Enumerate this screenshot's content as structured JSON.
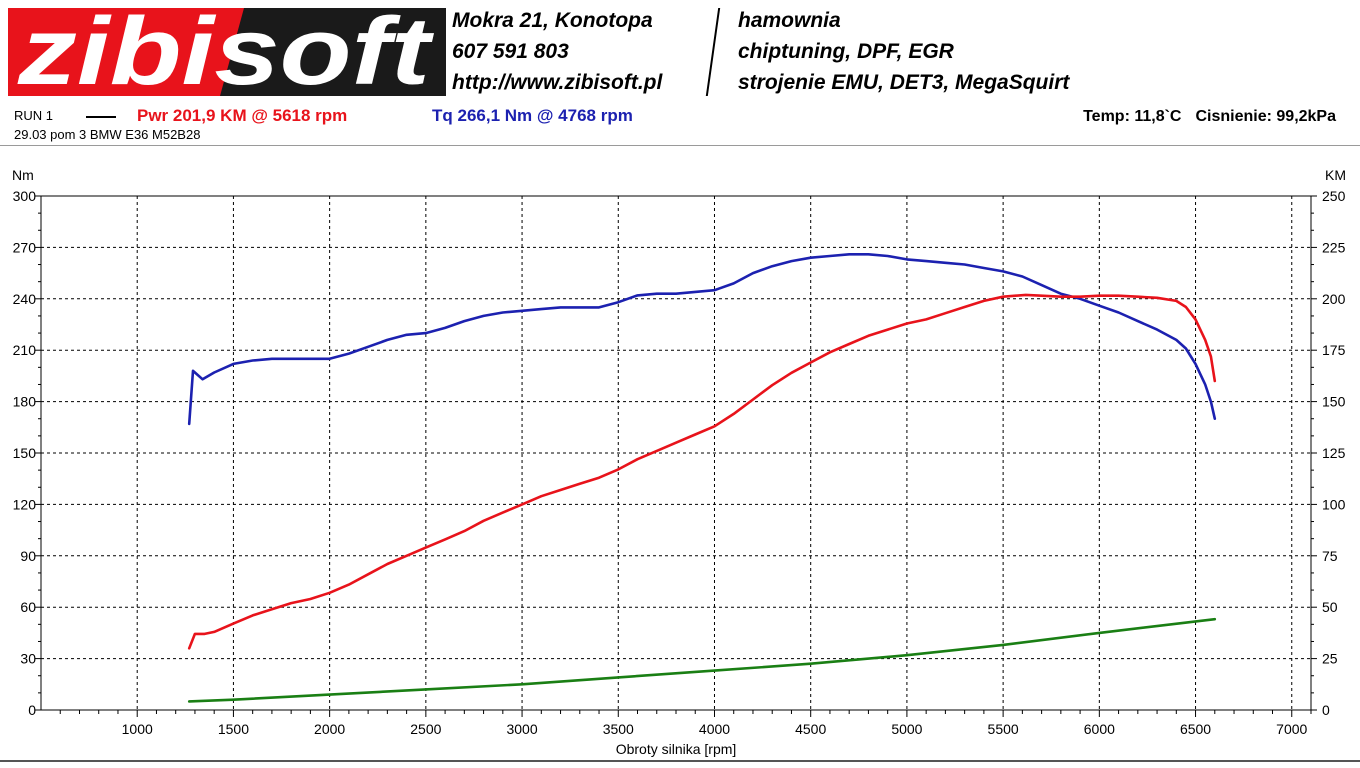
{
  "header": {
    "logo_text": "zibisoft",
    "contact_left": [
      "Mokra 21, Konotopa",
      "607 591 803",
      "http://www.zibisoft.pl"
    ],
    "contact_right": [
      "hamownia",
      "chiptuning, DPF, EGR",
      "strojenie EMU, DET3, MegaSquirt"
    ]
  },
  "run": {
    "label": "RUN 1",
    "power": "Pwr  201,9 KM @ 5618 rpm",
    "torque": "Tq 266,1 Nm @ 4768 rpm",
    "temp": "Temp: 11,8`C",
    "pressure": "Cisnienie: 99,2kPa",
    "description": "29.03 pom 3 BMW E36 M52B28"
  },
  "colors": {
    "power": "#e8131b",
    "torque": "#1c21b0",
    "loss": "#1a7f14",
    "logo_red": "#e8131b"
  },
  "chart_data": {
    "type": "line",
    "xlabel": "Obroty silnika [rpm]",
    "ylabel_left": "Nm",
    "ylabel_right": "KM",
    "xlim": [
      500,
      7100
    ],
    "ylim_left": [
      0,
      300
    ],
    "ylim_right": [
      0,
      250
    ],
    "x_ticks": [
      1000,
      1500,
      2000,
      2500,
      3000,
      3500,
      4000,
      4500,
      5000,
      5500,
      6000,
      6500,
      7000
    ],
    "y_ticks_left": [
      0,
      30,
      60,
      90,
      120,
      150,
      180,
      210,
      240,
      270,
      300
    ],
    "y_ticks_right": [
      0,
      25,
      50,
      75,
      100,
      125,
      150,
      175,
      200,
      225,
      250
    ],
    "grid": true,
    "series": [
      {
        "axis": "left",
        "color": "#1c21b0",
        "x": [
          1270,
          1290,
          1300,
          1340,
          1400,
          1500,
          1600,
          1700,
          1800,
          1900,
          2000,
          2100,
          2200,
          2300,
          2400,
          2500,
          2600,
          2700,
          2800,
          2900,
          3000,
          3100,
          3200,
          3300,
          3400,
          3500,
          3600,
          3700,
          3800,
          3900,
          4000,
          4100,
          4200,
          4300,
          4400,
          4500,
          4600,
          4700,
          4768,
          4800,
          4900,
          5000,
          5100,
          5200,
          5300,
          5400,
          5500,
          5600,
          5700,
          5800,
          5900,
          6000,
          6100,
          6200,
          6300,
          6400,
          6450,
          6500,
          6550,
          6580,
          6600
        ],
        "y": [
          167,
          198,
          197,
          193,
          197,
          202,
          204,
          205,
          205,
          205,
          205,
          208,
          212,
          216,
          219,
          220,
          223,
          227,
          230,
          232,
          233,
          234,
          235,
          235,
          235,
          238,
          242,
          243,
          243,
          244,
          245,
          249,
          255,
          259,
          262,
          264,
          265,
          266,
          266,
          266,
          265,
          263,
          262,
          261,
          260,
          258,
          256,
          253,
          248,
          243,
          240,
          236,
          232,
          227,
          222,
          216,
          211,
          202,
          190,
          180,
          170
        ]
      },
      {
        "axis": "right",
        "color": "#e8131b",
        "x": [
          1270,
          1300,
          1350,
          1400,
          1500,
          1600,
          1700,
          1800,
          1900,
          2000,
          2100,
          2200,
          2300,
          2400,
          2500,
          2600,
          2700,
          2800,
          2900,
          3000,
          3100,
          3200,
          3300,
          3400,
          3500,
          3600,
          3700,
          3800,
          3900,
          4000,
          4100,
          4200,
          4300,
          4400,
          4500,
          4600,
          4700,
          4800,
          4900,
          5000,
          5100,
          5200,
          5300,
          5400,
          5500,
          5618,
          5700,
          5800,
          5900,
          6000,
          6100,
          6200,
          6300,
          6400,
          6450,
          6500,
          6550,
          6580,
          6600
        ],
        "y": [
          30,
          37,
          37,
          38,
          42,
          46,
          49,
          52,
          54,
          57,
          61,
          66,
          71,
          75,
          79,
          83,
          87,
          92,
          96,
          100,
          104,
          107,
          110,
          113,
          117,
          122,
          126,
          130,
          134,
          138,
          144,
          151,
          158,
          164,
          169,
          174,
          178,
          182,
          185,
          188,
          190,
          193,
          196,
          199,
          201,
          201.9,
          201.5,
          201,
          201,
          201.5,
          201.5,
          201,
          200.5,
          199,
          196,
          190,
          180,
          172,
          160
        ]
      },
      {
        "axis": "left",
        "color": "#1a7f14",
        "x": [
          1270,
          1500,
          2000,
          2500,
          3000,
          3500,
          4000,
          4500,
          5000,
          5500,
          6000,
          6600
        ],
        "y": [
          5,
          6,
          9,
          12,
          15,
          19,
          23,
          27,
          32,
          38,
          45,
          53
        ]
      }
    ]
  }
}
